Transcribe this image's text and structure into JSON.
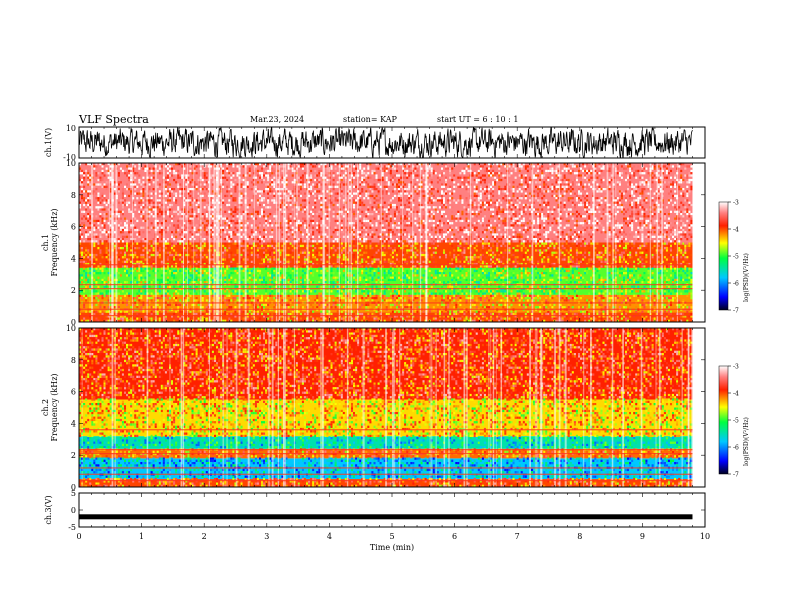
{
  "header": {
    "title": "VLF Spectra",
    "date": "Mar.23, 2024",
    "station": "station= KAP",
    "start": "start  UT  =   6  : 10 : 1"
  },
  "chart_data": [
    {
      "type": "line",
      "ylabel": "ch.1(V)",
      "ylim": [
        -10,
        10
      ],
      "yticks": [
        "10",
        "-10"
      ],
      "xlim": [
        0,
        10
      ],
      "description_values": "waveform amplitude oscillating roughly between -9 and +9 V over 0 to 9.8 min"
    },
    {
      "type": "heatmap",
      "ylabel": "ch.1 Frequency (kHz)",
      "ylim": [
        0,
        10
      ],
      "yticks": [
        "0",
        "2",
        "4",
        "6",
        "8",
        "10"
      ],
      "xlim": [
        0,
        9.8
      ],
      "colorbar": {
        "label": "log(PSD)(V²/Hz)",
        "range": [
          -7,
          -3
        ],
        "ticks": [
          "-3",
          "-4",
          "-5",
          "-6",
          "-7"
        ]
      },
      "bands": [
        {
          "from_khz": 0.0,
          "to_khz": 0.6,
          "level": -4.0
        },
        {
          "from_khz": 0.6,
          "to_khz": 1.7,
          "level": -4.2
        },
        {
          "from_khz": 1.7,
          "to_khz": 3.4,
          "level": -4.9
        },
        {
          "from_khz": 3.4,
          "to_khz": 5.0,
          "level": -4.0
        },
        {
          "from_khz": 5.0,
          "to_khz": 10.0,
          "level": -3.4
        }
      ]
    },
    {
      "type": "heatmap",
      "ylabel": "ch.2 Frequency (kHz)",
      "ylim": [
        0,
        10
      ],
      "yticks": [
        "0",
        "2",
        "4",
        "6",
        "8",
        "10"
      ],
      "xlim": [
        0,
        9.8
      ],
      "colorbar": {
        "label": "log(PSD)(V²/Hz)",
        "range": [
          -7,
          -3
        ],
        "ticks": [
          "-3",
          "-4",
          "-5",
          "-6",
          "-7"
        ]
      },
      "bands": [
        {
          "from_khz": 0.0,
          "to_khz": 0.5,
          "level": -4.0
        },
        {
          "from_khz": 0.5,
          "to_khz": 1.8,
          "level": -5.8
        },
        {
          "from_khz": 1.8,
          "to_khz": 2.4,
          "level": -4.1
        },
        {
          "from_khz": 2.4,
          "to_khz": 3.2,
          "level": -5.5
        },
        {
          "from_khz": 3.2,
          "to_khz": 5.5,
          "level": -4.4
        },
        {
          "from_khz": 5.5,
          "to_khz": 10.0,
          "level": -3.9
        }
      ]
    },
    {
      "type": "line",
      "ylabel": "ch.3(V)",
      "ylim": [
        -5,
        5
      ],
      "yticks": [
        "5",
        "0",
        "-5"
      ],
      "xlim": [
        0,
        9.8
      ],
      "x": [
        0,
        9.8
      ],
      "y": [
        -2,
        -2
      ],
      "xlabel": "Time (min)",
      "xticks": [
        "0",
        "1",
        "2",
        "3",
        "4",
        "5",
        "6",
        "7",
        "8",
        "9",
        "10"
      ]
    }
  ]
}
